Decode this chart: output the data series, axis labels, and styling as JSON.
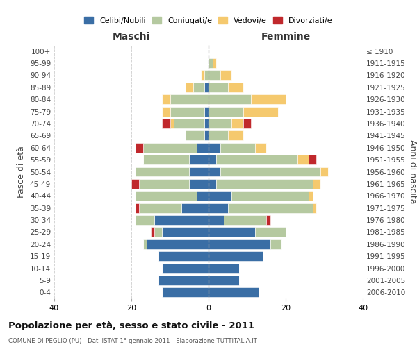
{
  "age_groups": [
    "0-4",
    "5-9",
    "10-14",
    "15-19",
    "20-24",
    "25-29",
    "30-34",
    "35-39",
    "40-44",
    "45-49",
    "50-54",
    "55-59",
    "60-64",
    "65-69",
    "70-74",
    "75-79",
    "80-84",
    "85-89",
    "90-94",
    "95-99",
    "100+"
  ],
  "birth_years": [
    "2006-2010",
    "2001-2005",
    "1996-2000",
    "1991-1995",
    "1986-1990",
    "1981-1985",
    "1976-1980",
    "1971-1975",
    "1966-1970",
    "1961-1965",
    "1956-1960",
    "1951-1955",
    "1946-1950",
    "1941-1945",
    "1936-1940",
    "1931-1935",
    "1926-1930",
    "1921-1925",
    "1916-1920",
    "1911-1915",
    "≤ 1910"
  ],
  "colors": {
    "celibi": "#3a6ea5",
    "coniugati": "#b5c9a0",
    "vedovi": "#f5c96e",
    "divorziati": "#c0282c"
  },
  "males": {
    "celibi": [
      12,
      13,
      12,
      13,
      16,
      12,
      14,
      7,
      3,
      5,
      5,
      5,
      3,
      1,
      1,
      1,
      0,
      1,
      0,
      0,
      0
    ],
    "coniugati": [
      0,
      0,
      0,
      0,
      1,
      2,
      5,
      11,
      16,
      13,
      14,
      12,
      14,
      5,
      8,
      9,
      10,
      3,
      1,
      0,
      0
    ],
    "vedovi": [
      0,
      0,
      0,
      0,
      0,
      0,
      0,
      0,
      0,
      0,
      0,
      0,
      0,
      0,
      1,
      2,
      2,
      2,
      1,
      0,
      0
    ],
    "divorziati": [
      0,
      0,
      0,
      0,
      0,
      1,
      0,
      1,
      0,
      2,
      0,
      0,
      2,
      0,
      2,
      0,
      0,
      0,
      0,
      0,
      0
    ]
  },
  "females": {
    "celibi": [
      13,
      8,
      8,
      14,
      16,
      12,
      4,
      5,
      6,
      2,
      3,
      2,
      3,
      0,
      0,
      0,
      0,
      0,
      0,
      0,
      0
    ],
    "coniugati": [
      0,
      0,
      0,
      0,
      3,
      8,
      11,
      22,
      20,
      25,
      26,
      21,
      9,
      5,
      6,
      9,
      11,
      5,
      3,
      1,
      0
    ],
    "vedovi": [
      0,
      0,
      0,
      0,
      0,
      0,
      0,
      1,
      1,
      2,
      2,
      3,
      3,
      4,
      3,
      9,
      9,
      4,
      3,
      1,
      0
    ],
    "divorziati": [
      0,
      0,
      0,
      0,
      0,
      0,
      1,
      0,
      0,
      0,
      0,
      2,
      0,
      0,
      2,
      0,
      0,
      0,
      0,
      0,
      0
    ]
  },
  "xlim": [
    -40,
    40
  ],
  "xlabel_left": "Maschi",
  "xlabel_right": "Femmine",
  "ylabel_left": "Fasce di età",
  "ylabel_right": "Anni di nascita",
  "title": "Popolazione per età, sesso e stato civile - 2011",
  "subtitle": "COMUNE DI PEGLIO (PU) - Dati ISTAT 1° gennaio 2011 - Elaborazione TUTTITALIA.IT",
  "legend_labels": [
    "Celibi/Nubili",
    "Coniugati/e",
    "Vedovi/e",
    "Divorziati/e"
  ],
  "legend_colors": [
    "#3a6ea5",
    "#b5c9a0",
    "#f5c96e",
    "#c0282c"
  ],
  "background_color": "#ffffff"
}
